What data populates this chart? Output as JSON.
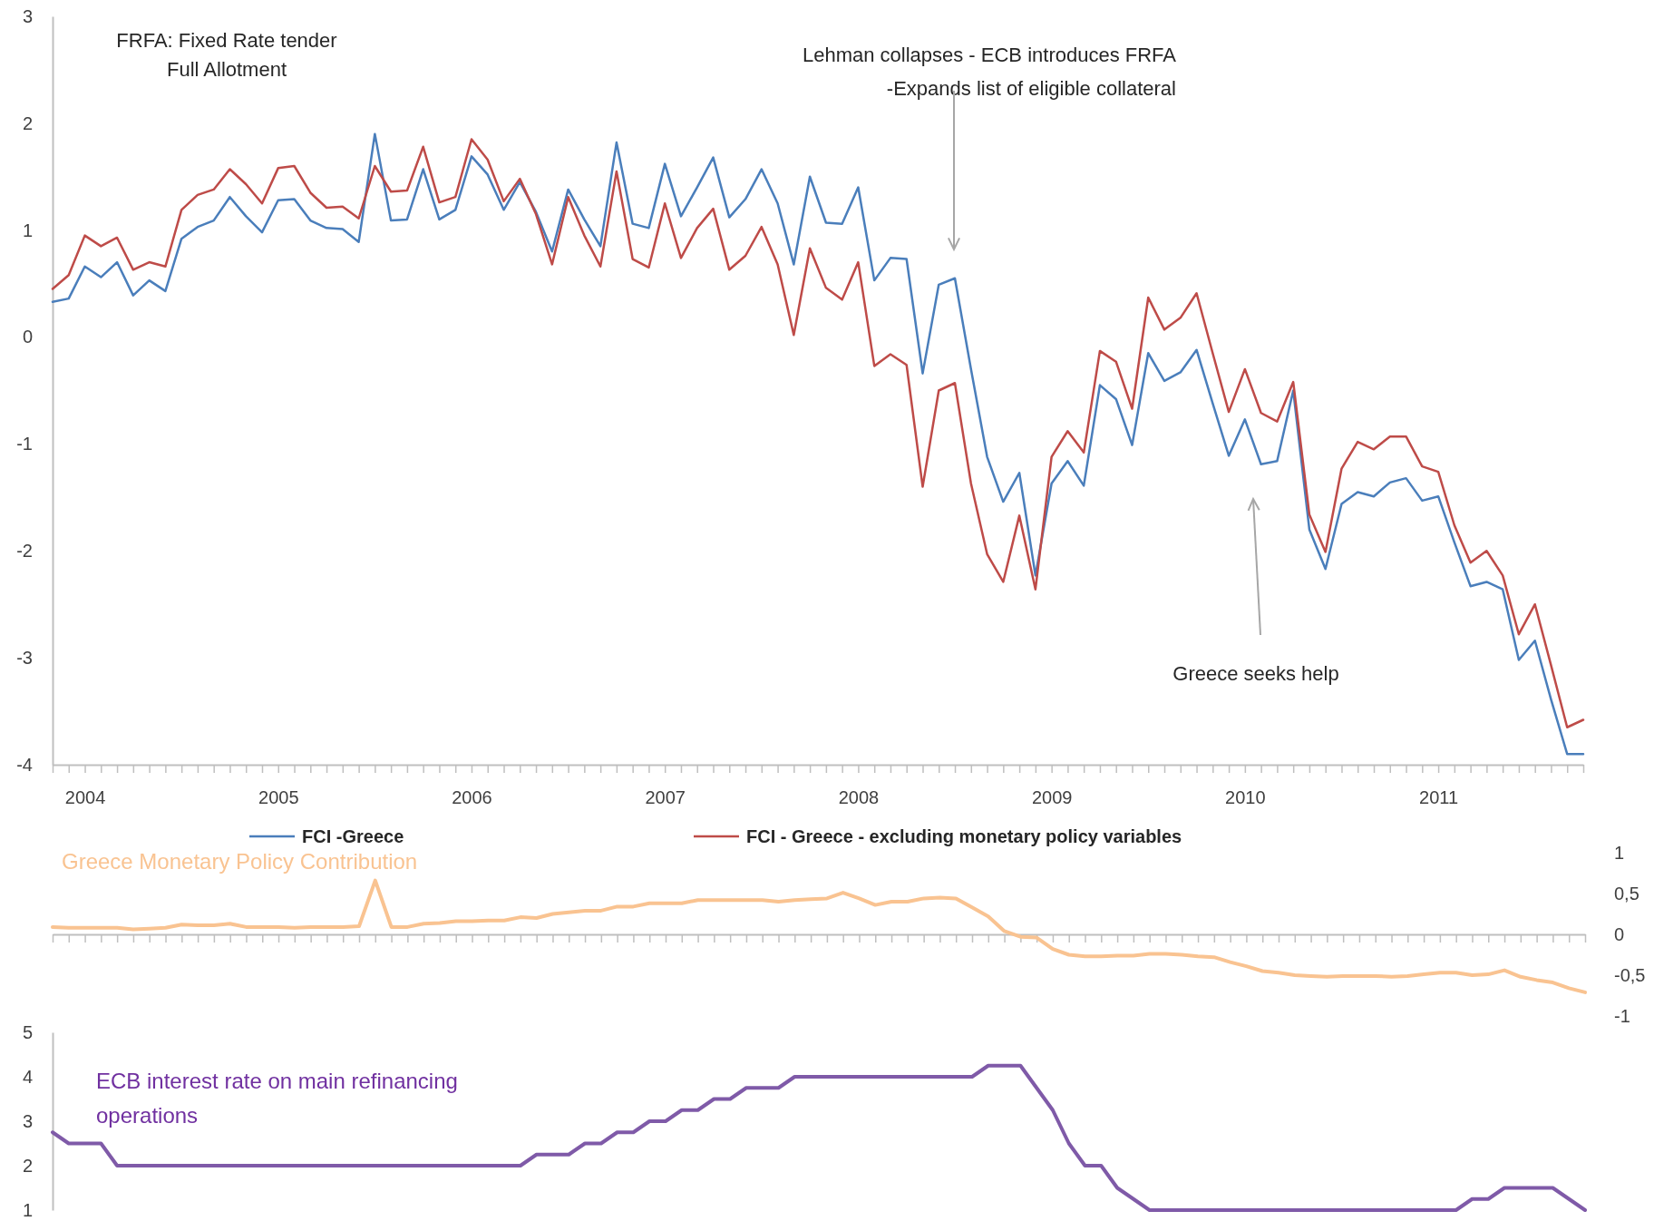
{
  "chart_data": [
    {
      "type": "line",
      "categories": [
        null,
        null,
        "2004",
        null,
        null,
        null,
        null,
        null,
        null,
        null,
        null,
        null,
        null,
        null,
        "2005",
        null,
        null,
        null,
        null,
        null,
        null,
        null,
        null,
        null,
        null,
        null,
        "2006",
        null,
        null,
        null,
        null,
        null,
        null,
        null,
        null,
        null,
        null,
        null,
        "2007",
        null,
        null,
        null,
        null,
        null,
        null,
        null,
        null,
        null,
        null,
        null,
        "2008",
        null,
        null,
        null,
        null,
        null,
        null,
        null,
        null,
        null,
        null,
        null,
        "2009",
        null,
        null,
        null,
        null,
        null,
        null,
        null,
        null,
        null,
        null,
        null,
        "2010",
        null,
        null,
        null,
        null,
        null,
        null,
        null,
        null,
        null,
        null,
        null,
        "2011",
        null,
        null,
        null,
        null,
        null,
        null,
        null,
        null,
        null
      ],
      "series": [
        {
          "name": "FCI -Greece",
          "color": "#4a7ebb",
          "values": [
            0.33,
            0.36,
            0.66,
            0.56,
            0.7,
            0.39,
            0.53,
            0.43,
            0.92,
            1.03,
            1.09,
            1.31,
            1.13,
            0.98,
            1.28,
            1.29,
            1.09,
            1.02,
            1.01,
            0.89,
            1.9,
            1.09,
            1.1,
            1.57,
            1.1,
            1.19,
            1.69,
            1.52,
            1.19,
            1.45,
            1.17,
            0.8,
            1.38,
            1.1,
            0.85,
            1.82,
            1.06,
            1.02,
            1.62,
            1.13,
            1.4,
            1.68,
            1.12,
            1.29,
            1.57,
            1.25,
            0.68,
            1.5,
            1.07,
            1.06,
            1.4,
            0.53,
            0.74,
            0.73,
            -0.34,
            0.49,
            0.55,
            -0.3,
            -1.12,
            -1.54,
            -1.27,
            -2.23,
            -1.37,
            -1.16,
            -1.39,
            -0.45,
            -0.58,
            -1.01,
            -0.15,
            -0.41,
            -0.33,
            -0.12,
            -0.62,
            -1.11,
            -0.77,
            -1.19,
            -1.16,
            -0.5,
            -1.8,
            -2.17,
            -1.56,
            -1.45,
            -1.49,
            -1.36,
            -1.32,
            -1.53,
            -1.49,
            -1.92,
            -2.33,
            -2.29,
            -2.36,
            -3.02,
            -2.84,
            -3.39,
            -3.9,
            -3.9
          ]
        },
        {
          "name": "FCI - Greece - excluding monetary policy variables",
          "color": "#be4b48",
          "values": [
            0.45,
            0.58,
            0.95,
            0.85,
            0.93,
            0.63,
            0.7,
            0.66,
            1.19,
            1.33,
            1.38,
            1.57,
            1.43,
            1.25,
            1.58,
            1.6,
            1.35,
            1.21,
            1.22,
            1.11,
            1.6,
            1.36,
            1.37,
            1.78,
            1.26,
            1.31,
            1.85,
            1.66,
            1.27,
            1.48,
            1.15,
            0.68,
            1.31,
            0.95,
            0.66,
            1.55,
            0.73,
            0.65,
            1.25,
            0.74,
            1.02,
            1.2,
            0.63,
            0.76,
            1.03,
            0.68,
            0.02,
            0.83,
            0.46,
            0.35,
            0.7,
            -0.27,
            -0.16,
            -0.26,
            -1.4,
            -0.5,
            -0.43,
            -1.37,
            -2.03,
            -2.29,
            -1.67,
            -2.36,
            -1.12,
            -0.88,
            -1.08,
            -0.13,
            -0.23,
            -0.67,
            0.37,
            0.07,
            0.18,
            0.41,
            -0.15,
            -0.7,
            -0.3,
            -0.71,
            -0.79,
            -0.42,
            -1.66,
            -2.01,
            -1.23,
            -0.98,
            -1.05,
            -0.93,
            -0.93,
            -1.21,
            -1.26,
            -1.76,
            -2.11,
            -2.0,
            -2.23,
            -2.78,
            -2.5,
            -3.07,
            -3.65,
            -3.58
          ]
        }
      ],
      "ylim": [
        -4,
        3
      ],
      "yticks": [
        -4,
        -3,
        -2,
        -1,
        0,
        1,
        2,
        3
      ],
      "legend": "bottom",
      "annotations": [
        "FRFA: Fixed Rate tender\nFull Allotment",
        "Lehman collapses - ECB introduces FRFA\n-Expands list of eligible collateral",
        "Greece seeks help"
      ]
    },
    {
      "type": "line",
      "categories": [
        null,
        null,
        null,
        null,
        null,
        null,
        null,
        null,
        null,
        null,
        null,
        null,
        null,
        null,
        null,
        null,
        null,
        null,
        null,
        null,
        null,
        null,
        null,
        null,
        null,
        null,
        null,
        null,
        null,
        null,
        null,
        null,
        null,
        null,
        null,
        null,
        null,
        null,
        null,
        null,
        null,
        null,
        null,
        null,
        null,
        null,
        null,
        null,
        null,
        null,
        null,
        null,
        null,
        null,
        null,
        null,
        null,
        null,
        null,
        null,
        null,
        null,
        null,
        null,
        null,
        null,
        null,
        null,
        null,
        null,
        null,
        null,
        null,
        null,
        null,
        null,
        null,
        null,
        null,
        null,
        null,
        null,
        null,
        null,
        null,
        null,
        null,
        null,
        null,
        null,
        null,
        null,
        null,
        null,
        null,
        null
      ],
      "series": [
        {
          "name": "Greece Monetary Policy Contribution",
          "color": "#f9c391",
          "values": [
            0.09,
            0.08,
            0.08,
            0.08,
            0.08,
            0.06,
            0.07,
            0.08,
            0.12,
            0.11,
            0.11,
            0.13,
            0.09,
            0.09,
            0.09,
            0.08,
            0.09,
            0.09,
            0.09,
            0.1,
            0.66,
            0.09,
            0.09,
            0.13,
            0.14,
            0.16,
            0.16,
            0.17,
            0.17,
            0.21,
            0.2,
            0.25,
            0.27,
            0.29,
            0.29,
            0.34,
            0.34,
            0.38,
            0.38,
            0.38,
            0.42,
            0.42,
            0.42,
            0.42,
            0.42,
            0.4,
            0.42,
            0.43,
            0.44,
            0.51,
            0.44,
            0.36,
            0.4,
            0.4,
            0.44,
            0.45,
            0.44,
            0.33,
            0.22,
            0.04,
            -0.03,
            -0.04,
            -0.18,
            -0.25,
            -0.27,
            -0.27,
            -0.26,
            -0.26,
            -0.24,
            -0.24,
            -0.25,
            -0.27,
            -0.28,
            -0.34,
            -0.39,
            -0.45,
            -0.47,
            -0.5,
            -0.51,
            -0.52,
            -0.51,
            -0.51,
            -0.51,
            -0.52,
            -0.51,
            -0.49,
            -0.47,
            -0.47,
            -0.5,
            -0.49,
            -0.44,
            -0.52,
            -0.56,
            -0.59,
            -0.66,
            -0.71
          ]
        }
      ],
      "ylim": [
        -1,
        1
      ],
      "yticks": [
        -1,
        {
          "value": -0.5,
          "label": "-0,5"
        },
        0,
        {
          "value": 0.5,
          "label": "0,5"
        },
        1
      ],
      "tick_labels": "y"
    },
    {
      "type": "line",
      "categories": [
        null,
        null,
        null,
        null,
        null,
        null,
        null,
        null,
        null,
        null,
        null,
        null,
        null,
        null,
        null,
        null,
        null,
        null,
        null,
        null,
        null,
        null,
        null,
        null,
        null,
        null,
        null,
        null,
        null,
        null,
        null,
        null,
        null,
        null,
        null,
        null,
        null,
        null,
        null,
        null,
        null,
        null,
        null,
        null,
        null,
        null,
        null,
        null,
        null,
        null,
        null,
        null,
        null,
        null,
        null,
        null,
        null,
        null,
        null,
        null,
        null,
        null,
        null,
        null,
        null,
        null,
        null,
        null,
        null,
        null,
        null,
        null,
        null,
        null,
        null,
        null,
        null,
        null,
        null,
        null,
        null,
        null,
        null,
        null,
        null,
        null,
        null,
        null,
        null,
        null,
        null,
        null,
        null,
        null,
        null,
        null
      ],
      "series": [
        {
          "name": "ECB interest rate on main refinancing operations",
          "color": "#7f5aa8",
          "values": [
            2.75,
            2.5,
            2.5,
            2.5,
            2.0,
            2.0,
            2.0,
            2.0,
            2.0,
            2.0,
            2.0,
            2.0,
            2.0,
            2.0,
            2.0,
            2.0,
            2.0,
            2.0,
            2.0,
            2.0,
            2.0,
            2.0,
            2.0,
            2.0,
            2.0,
            2.0,
            2.0,
            2.0,
            2.0,
            2.0,
            2.25,
            2.25,
            2.25,
            2.5,
            2.5,
            2.75,
            2.75,
            3.0,
            3.0,
            3.25,
            3.25,
            3.5,
            3.5,
            3.75,
            3.75,
            3.75,
            4.0,
            4.0,
            4.0,
            4.0,
            4.0,
            4.0,
            4.0,
            4.0,
            4.0,
            4.0,
            4.0,
            4.0,
            4.25,
            4.25,
            4.25,
            3.75,
            3.25,
            2.5,
            2.0,
            2.0,
            1.5,
            1.25,
            1.0,
            1.0,
            1.0,
            1.0,
            1.0,
            1.0,
            1.0,
            1.0,
            1.0,
            1.0,
            1.0,
            1.0,
            1.0,
            1.0,
            1.0,
            1.0,
            1.0,
            1.0,
            1.0,
            1.0,
            1.25,
            1.25,
            1.5,
            1.5,
            1.5,
            1.5,
            1.25,
            1.0
          ]
        }
      ],
      "ylim": [
        1,
        5
      ],
      "yticks": [
        1,
        2,
        3,
        4,
        5
      ],
      "tick_labels": "y"
    }
  ]
}
